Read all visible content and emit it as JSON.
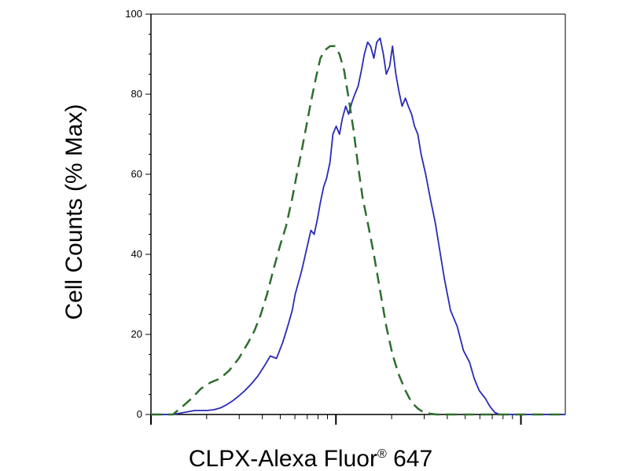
{
  "chart_data": {
    "type": "line",
    "xlabel": "CLPX-Alexa Fluor",
    "xlabel_superscript": "®",
    "xlabel_suffix": " 647",
    "ylabel": "Cell Counts (% Max)",
    "ylim": [
      0,
      100
    ],
    "xlim": [
      0,
      100
    ],
    "x_scale": "log",
    "y_ticks": [
      0,
      20,
      40,
      60,
      80,
      100
    ],
    "y_tick_labels": [
      "0",
      "20",
      "40",
      "60",
      "80",
      "100"
    ],
    "grid": false,
    "legend": "none",
    "series": [
      {
        "color": "#2a2ab8",
        "style": "solid",
        "x": [
          0.0,
          5.3,
          10.6,
          12.1,
          13.6,
          15.2,
          16.7,
          18.2,
          19.7,
          21.2,
          22.7,
          24.2,
          25.8,
          27.3,
          28.8,
          30.3,
          31.8,
          33.0,
          34.1,
          34.8,
          35.6,
          36.4,
          37.5,
          38.6,
          39.4,
          40.2,
          40.9,
          41.7,
          42.4,
          43.2,
          43.9,
          44.7,
          45.5,
          46.2,
          47.0,
          47.7,
          48.5,
          49.2,
          50.0,
          50.8,
          51.5,
          52.3,
          53.0,
          53.8,
          54.5,
          55.3,
          56.1,
          56.8,
          57.6,
          58.3,
          59.1,
          59.8,
          60.6,
          61.4,
          62.1,
          62.9,
          63.6,
          64.4,
          65.2,
          66.3,
          67.4,
          68.6,
          69.7,
          70.8,
          72.3,
          73.9,
          75.4,
          76.9,
          78.0,
          79.2,
          80.7,
          81.8,
          83.0,
          84.1,
          84.8,
          85.6,
          86.4,
          87.5,
          88.6,
          89.4,
          90.2,
          91.3,
          92.4,
          93.9,
          95.5,
          97.7,
          100.0
        ],
        "y": [
          0.0,
          0.0,
          1.0,
          1.0,
          1.0,
          1.2,
          1.6,
          2.4,
          3.4,
          4.6,
          6.0,
          7.6,
          9.6,
          12.0,
          14.6,
          14.0,
          18.0,
          22.0,
          26.0,
          30.0,
          33.0,
          36.0,
          41.0,
          46.0,
          45.0,
          49.0,
          53.0,
          57.0,
          59.0,
          63.0,
          70.0,
          72.0,
          70.0,
          74.0,
          77.0,
          75.0,
          78.0,
          80.0,
          82.0,
          86.0,
          90.0,
          93.0,
          92.0,
          89.0,
          93.0,
          94.0,
          90.0,
          85.0,
          87.0,
          92.0,
          85.0,
          81.0,
          77.0,
          79.0,
          77.0,
          75.0,
          72.0,
          70.0,
          65.0,
          60.0,
          54.0,
          48.0,
          41.0,
          34.0,
          26.0,
          22.0,
          16.0,
          13.0,
          9.0,
          6.0,
          4.0,
          2.0,
          0.5,
          0.0,
          0.0,
          0.0,
          0.0,
          0.0,
          0.0,
          0.0,
          0.0,
          0.0,
          0.0,
          0.0,
          0.0,
          0.0,
          0.0
        ]
      },
      {
        "color": "#2e6e2e",
        "style": "dashed",
        "x": [
          0.0,
          5.3,
          7.6,
          9.8,
          12.1,
          14.4,
          16.7,
          18.9,
          21.2,
          23.5,
          25.0,
          26.5,
          28.0,
          29.5,
          31.1,
          32.6,
          34.1,
          35.2,
          36.4,
          37.5,
          38.6,
          39.8,
          40.9,
          42.0,
          43.2,
          44.3,
          45.5,
          46.6,
          47.7,
          48.9,
          50.0,
          51.1,
          52.3,
          53.8,
          55.3,
          56.8,
          58.3,
          59.8,
          61.4,
          62.9,
          64.4,
          65.9,
          67.4,
          68.9,
          70.5,
          72.0,
          73.5,
          75.0,
          77.3,
          79.5,
          81.8,
          84.1,
          86.4,
          100.0
        ],
        "y": [
          0.0,
          0.0,
          2.0,
          4.0,
          6.5,
          8.0,
          9.0,
          11.0,
          14.0,
          18.0,
          21.0,
          25.0,
          30.0,
          36.0,
          42.0,
          47.0,
          54.0,
          60.0,
          66.0,
          72.0,
          78.0,
          84.0,
          89.0,
          91.0,
          92.0,
          92.0,
          90.0,
          86.0,
          79.0,
          71.0,
          62.0,
          54.0,
          48.0,
          40.0,
          31.0,
          22.0,
          15.0,
          10.0,
          6.0,
          3.0,
          1.5,
          0.5,
          0.2,
          0.0,
          0.0,
          0.0,
          0.0,
          0.0,
          0.0,
          0.0,
          0.0,
          0.0,
          0.0,
          0.0
        ]
      }
    ]
  }
}
